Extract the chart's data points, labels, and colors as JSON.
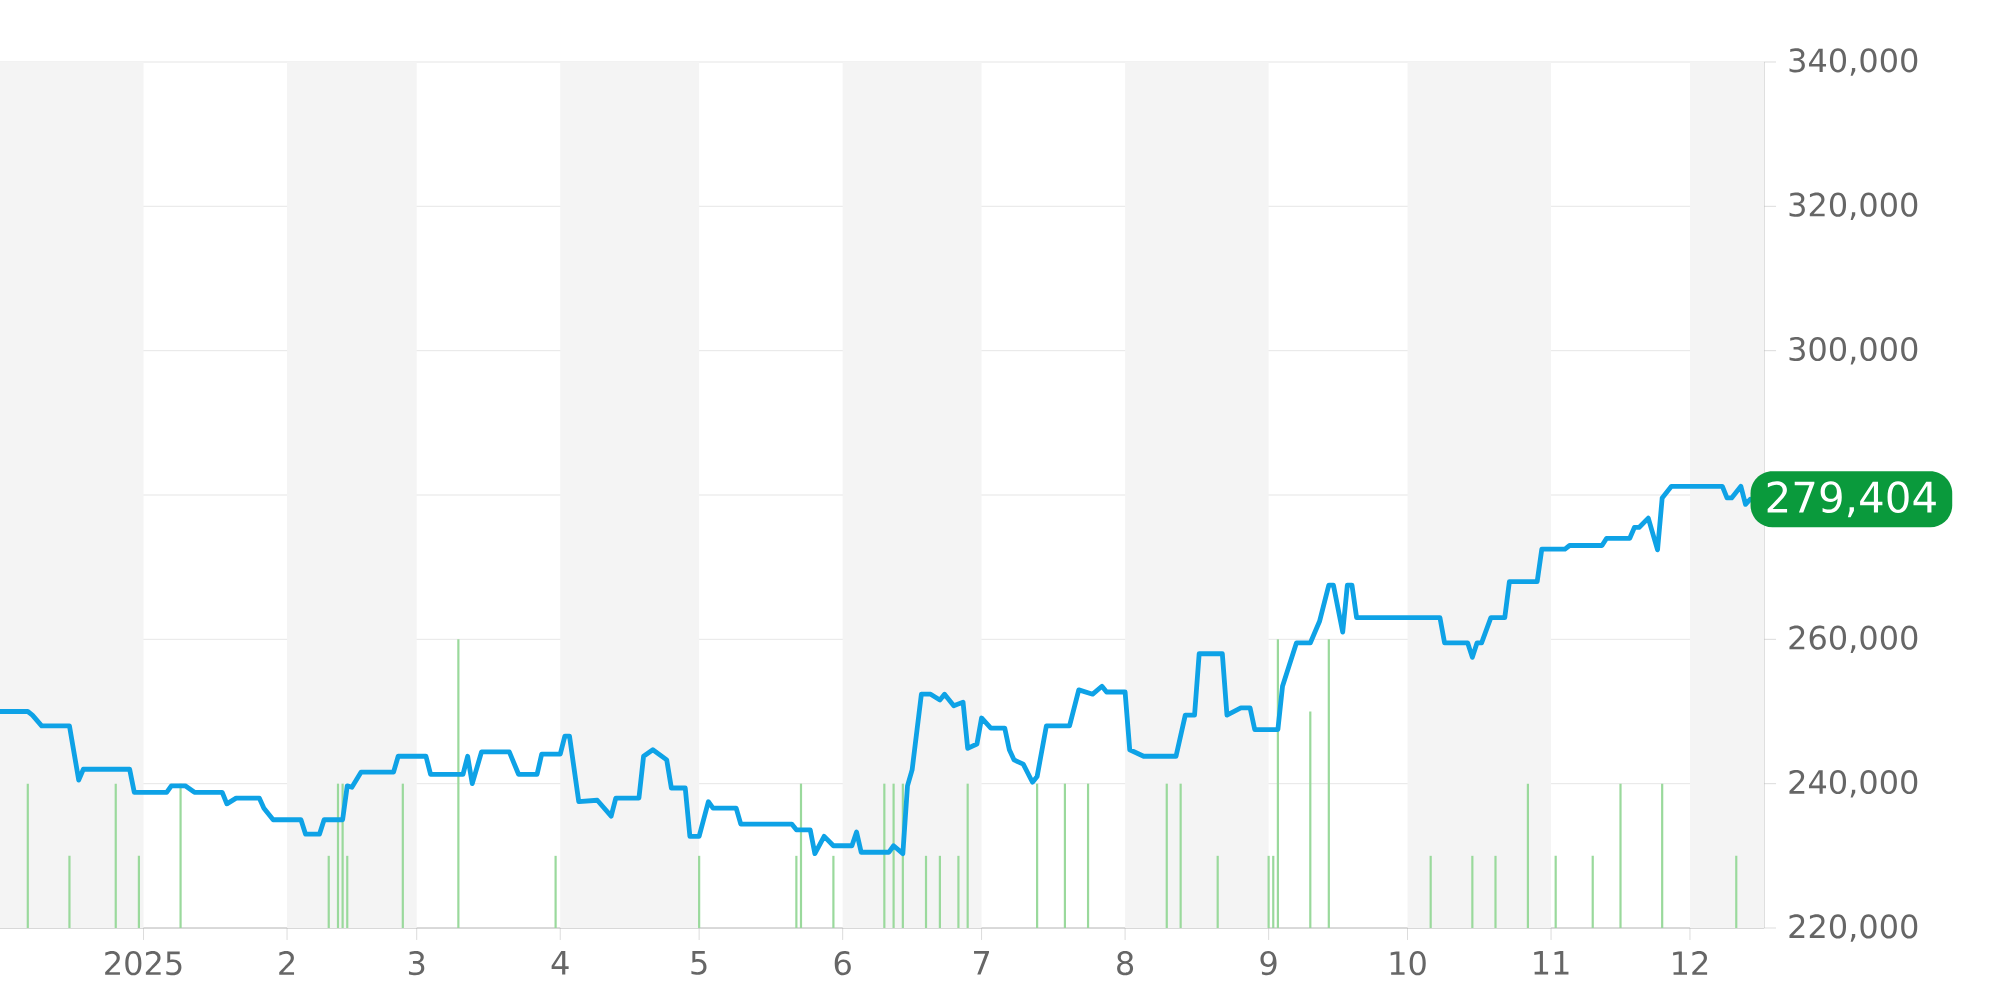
{
  "chart_data": {
    "type": "line",
    "xlim": [
      "2024-12-01",
      "2025-12-17"
    ],
    "xticks": [
      {
        "value": "2025-01-01",
        "label": "2025"
      },
      {
        "value": "2025-02-01",
        "label": "2"
      },
      {
        "value": "2025-03-01",
        "label": "3"
      },
      {
        "value": "2025-04-01",
        "label": "4"
      },
      {
        "value": "2025-05-01",
        "label": "5"
      },
      {
        "value": "2025-06-01",
        "label": "6"
      },
      {
        "value": "2025-07-01",
        "label": "7"
      },
      {
        "value": "2025-08-01",
        "label": "8"
      },
      {
        "value": "2025-09-01",
        "label": "9"
      },
      {
        "value": "2025-10-01",
        "label": "10"
      },
      {
        "value": "2025-11-01",
        "label": "11"
      },
      {
        "value": "2025-12-01",
        "label": "12"
      }
    ],
    "ylim": [
      220000,
      340000
    ],
    "yticks": [
      {
        "value": 220000,
        "label": "220,000"
      },
      {
        "value": 240000,
        "label": "240,000"
      },
      {
        "value": 260000,
        "label": "260,000"
      },
      {
        "value": 280000,
        "label": null
      },
      {
        "value": 300000,
        "label": "300,000"
      },
      {
        "value": 320000,
        "label": "320,000"
      },
      {
        "value": 340000,
        "label": "340,000"
      }
    ],
    "grid": "y",
    "bands": [
      {
        "axis": "x",
        "from": "2024-12-01",
        "to": "2025-01-01",
        "color": "#f4f4f4"
      },
      {
        "axis": "x",
        "from": "2025-02-01",
        "to": "2025-03-01",
        "color": "#f4f4f4"
      },
      {
        "axis": "x",
        "from": "2025-04-01",
        "to": "2025-05-01",
        "color": "#f4f4f4"
      },
      {
        "axis": "x",
        "from": "2025-06-01",
        "to": "2025-07-01",
        "color": "#f4f4f4"
      },
      {
        "axis": "x",
        "from": "2025-08-01",
        "to": "2025-09-01",
        "color": "#f4f4f4"
      },
      {
        "axis": "x",
        "from": "2025-10-01",
        "to": "2025-11-01",
        "color": "#f4f4f4"
      },
      {
        "axis": "x",
        "from": "2025-12-01",
        "to": "2025-12-17",
        "color": "#f4f4f4"
      }
    ],
    "series": [
      {
        "type": "bar",
        "color": "#9ad99c",
        "x": [
          "2024-12-07",
          "2024-12-16",
          "2024-12-26",
          "2024-12-31",
          "2025-01-09",
          "2025-02-10",
          "2025-02-12",
          "2025-02-13",
          "2025-02-14",
          "2025-02-26",
          "2025-03-10",
          "2025-03-31",
          "2025-05-01",
          "2025-05-22",
          "2025-05-23",
          "2025-05-30",
          "2025-06-10",
          "2025-06-12",
          "2025-06-14",
          "2025-06-19",
          "2025-06-22",
          "2025-06-26",
          "2025-06-28",
          "2025-07-13",
          "2025-07-19",
          "2025-07-24",
          "2025-08-10",
          "2025-08-13",
          "2025-08-21",
          "2025-09-01",
          "2025-09-02",
          "2025-09-03",
          "2025-09-10",
          "2025-09-14",
          "2025-10-06",
          "2025-10-15",
          "2025-10-20",
          "2025-10-27",
          "2025-11-02",
          "2025-11-10",
          "2025-11-16",
          "2025-11-25",
          "2025-12-11"
        ],
        "values": [
          240000,
          230000,
          240000,
          230000,
          240000,
          230000,
          240000,
          240000,
          230000,
          240000,
          260000,
          230000,
          230000,
          230000,
          240000,
          230000,
          240000,
          240000,
          240000,
          230000,
          230000,
          230000,
          240000,
          240000,
          240000,
          240000,
          240000,
          240000,
          230000,
          230000,
          230000,
          260000,
          250000,
          260000,
          230000,
          230000,
          230000,
          240000,
          230000,
          230000,
          240000,
          240000,
          230000
        ]
      },
      {
        "color": "#0ea2e6",
        "x": [
          "2024-12-01",
          "2024-12-07",
          "2024-12-08",
          "2024-12-10",
          "2024-12-16",
          "2024-12-18",
          "2024-12-19",
          "2024-12-29",
          "2024-12-30",
          "2025-01-06",
          "2025-01-07",
          "2025-01-10",
          "2025-01-12",
          "2025-01-18",
          "2025-01-19",
          "2025-01-21",
          "2025-01-26",
          "2025-01-27",
          "2025-01-29",
          "2025-02-04",
          "2025-02-05",
          "2025-02-08",
          "2025-02-09",
          "2025-02-13",
          "2025-02-14",
          "2025-02-15",
          "2025-02-17",
          "2025-02-24",
          "2025-02-25",
          "2025-03-03",
          "2025-03-04",
          "2025-03-11",
          "2025-03-12",
          "2025-03-13",
          "2025-03-15",
          "2025-03-21",
          "2025-03-23",
          "2025-03-27",
          "2025-03-28",
          "2025-04-01",
          "2025-04-02",
          "2025-04-03",
          "2025-04-05",
          "2025-04-09",
          "2025-04-12",
          "2025-04-13",
          "2025-04-18",
          "2025-04-19",
          "2025-04-21",
          "2025-04-24",
          "2025-04-25",
          "2025-04-28",
          "2025-04-29",
          "2025-05-01",
          "2025-05-03",
          "2025-05-04",
          "2025-05-09",
          "2025-05-10",
          "2025-05-21",
          "2025-05-22",
          "2025-05-25",
          "2025-05-26",
          "2025-05-28",
          "2025-05-30",
          "2025-06-03",
          "2025-06-04",
          "2025-06-05",
          "2025-06-11",
          "2025-06-12",
          "2025-06-14",
          "2025-06-15",
          "2025-06-16",
          "2025-06-18",
          "2025-06-20",
          "2025-06-22",
          "2025-06-23",
          "2025-06-25",
          "2025-06-27",
          "2025-06-28",
          "2025-06-30",
          "2025-07-01",
          "2025-07-03",
          "2025-07-06",
          "2025-07-07",
          "2025-07-08",
          "2025-07-10",
          "2025-07-12",
          "2025-07-13",
          "2025-07-15",
          "2025-07-20",
          "2025-07-22",
          "2025-07-25",
          "2025-07-27",
          "2025-07-28",
          "2025-08-01",
          "2025-08-02",
          "2025-08-05",
          "2025-08-12",
          "2025-08-14",
          "2025-08-16",
          "2025-08-17",
          "2025-08-22",
          "2025-08-23",
          "2025-08-26",
          "2025-08-28",
          "2025-08-29",
          "2025-09-03",
          "2025-09-04",
          "2025-09-07",
          "2025-09-10",
          "2025-09-12",
          "2025-09-14",
          "2025-09-15",
          "2025-09-17",
          "2025-09-18",
          "2025-09-19",
          "2025-09-20",
          "2025-10-08",
          "2025-10-09",
          "2025-10-14",
          "2025-10-15",
          "2025-10-16",
          "2025-10-17",
          "2025-10-19",
          "2025-10-22",
          "2025-10-23",
          "2025-10-29",
          "2025-10-30",
          "2025-11-04",
          "2025-11-05",
          "2025-11-12",
          "2025-11-13",
          "2025-11-18",
          "2025-11-19",
          "2025-11-20",
          "2025-11-22",
          "2025-11-24",
          "2025-11-25",
          "2025-11-27",
          "2025-12-08",
          "2025-12-09",
          "2025-12-10",
          "2025-12-12",
          "2025-12-13",
          "2025-12-14"
        ],
        "values": [
          250000,
          250000,
          249500,
          248000,
          248000,
          240500,
          242000,
          242000,
          238800,
          238800,
          239700,
          239700,
          238800,
          238800,
          237200,
          238000,
          238000,
          236600,
          235000,
          235000,
          233000,
          233000,
          235000,
          235000,
          239700,
          239500,
          241600,
          241600,
          243800,
          243800,
          241300,
          241300,
          243800,
          240000,
          244400,
          244400,
          241300,
          241300,
          244100,
          244100,
          246600,
          246600,
          237500,
          237700,
          235500,
          238000,
          238000,
          243800,
          244700,
          243300,
          239400,
          239400,
          232700,
          232700,
          237500,
          236600,
          236600,
          234400,
          234400,
          233600,
          233600,
          230300,
          232700,
          231400,
          231400,
          233300,
          230500,
          230500,
          231400,
          230300,
          239700,
          241900,
          252400,
          252400,
          251600,
          252400,
          250800,
          251300,
          244900,
          245500,
          249100,
          247700,
          247700,
          244700,
          243300,
          242700,
          240200,
          241000,
          248000,
          248000,
          253000,
          252400,
          253500,
          252700,
          252700,
          244700,
          243800,
          243800,
          249500,
          249500,
          258000,
          258000,
          249500,
          250500,
          250500,
          247500,
          247500,
          253500,
          259500,
          259500,
          262500,
          267500,
          267500,
          261000,
          267500,
          267500,
          263000,
          263000,
          259500,
          259500,
          257500,
          259500,
          259500,
          263000,
          263000,
          268000,
          268000,
          272500,
          272500,
          273000,
          273000,
          274000,
          274000,
          275500,
          275500,
          276800,
          272400,
          279600,
          281200,
          281200,
          279600,
          279600,
          281200,
          278700,
          279404
        ]
      }
    ],
    "annotations": [
      {
        "text": "279,404",
        "x": "2025-12-14",
        "y": 279404
      }
    ]
  }
}
